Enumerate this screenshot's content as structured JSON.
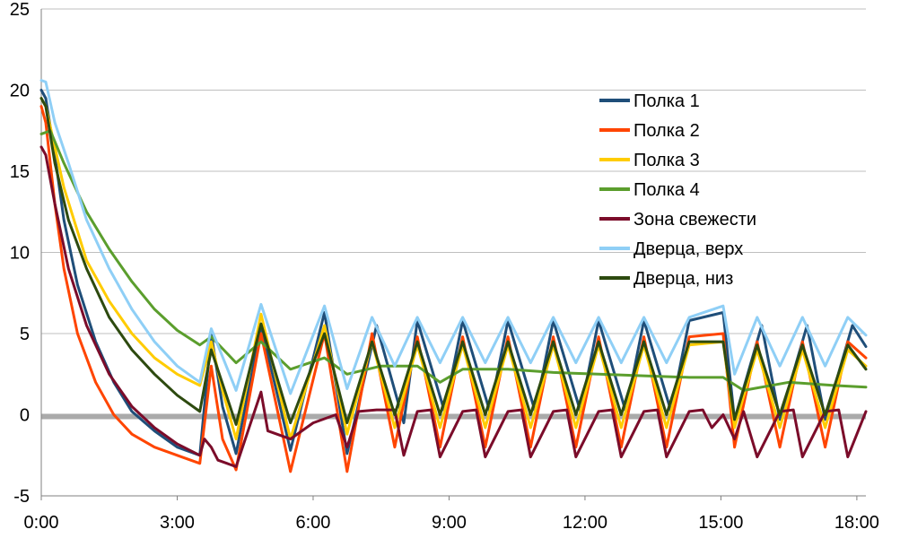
{
  "chart_data": {
    "type": "line",
    "title": "",
    "xlabel": "",
    "ylabel": "",
    "xlim": [
      0,
      18.2
    ],
    "ylim": [
      -5,
      25
    ],
    "x_ticks": [
      {
        "value": 0,
        "label": "0:00"
      },
      {
        "value": 3,
        "label": "3:00"
      },
      {
        "value": 6,
        "label": "6:00"
      },
      {
        "value": 9,
        "label": "9:00"
      },
      {
        "value": 12,
        "label": "12:00"
      },
      {
        "value": 15,
        "label": "15:00"
      },
      {
        "value": 18,
        "label": "18:00"
      }
    ],
    "y_ticks": [
      {
        "value": -5,
        "label": "-5"
      },
      {
        "value": 0,
        "label": "0"
      },
      {
        "value": 5,
        "label": "5"
      },
      {
        "value": 10,
        "label": "10"
      },
      {
        "value": 15,
        "label": "15"
      },
      {
        "value": 20,
        "label": "20"
      },
      {
        "value": 25,
        "label": "25"
      }
    ],
    "grid": "horizontal",
    "legend_position": "right",
    "zero_line_color": "#aaaaaa",
    "series": [
      {
        "name": "Полка 1",
        "color": "#1f4e79",
        "x": [
          0.0,
          0.1,
          0.3,
          0.5,
          0.8,
          1.2,
          1.6,
          2.0,
          2.5,
          3.0,
          3.5,
          3.75,
          4.0,
          4.3,
          4.85,
          5.5,
          6.25,
          6.75,
          7.4,
          8.0,
          8.3,
          8.9,
          9.3,
          9.9,
          10.3,
          10.9,
          11.3,
          11.9,
          12.3,
          12.9,
          13.3,
          13.9,
          14.3,
          15.05,
          15.3,
          15.9,
          16.3,
          16.9,
          17.3,
          17.9,
          18.2
        ],
        "y": [
          20.0,
          19.5,
          16.0,
          12.0,
          8.0,
          4.5,
          2.0,
          0.2,
          -1.0,
          -2.0,
          -2.5,
          5.0,
          0.5,
          -2.4,
          5.5,
          -2.2,
          6.3,
          -2.4,
          5.5,
          -0.5,
          5.8,
          0.2,
          5.8,
          0.2,
          5.8,
          0.2,
          5.8,
          0.2,
          5.8,
          0.2,
          5.8,
          0.2,
          5.8,
          6.3,
          -0.3,
          5.5,
          -0.3,
          5.5,
          -0.3,
          5.5,
          4.2
        ]
      },
      {
        "name": "Полка 2",
        "color": "#ff4500",
        "x": [
          0.0,
          0.1,
          0.3,
          0.5,
          0.8,
          1.2,
          1.6,
          2.0,
          2.5,
          3.0,
          3.5,
          3.75,
          4.0,
          4.3,
          4.85,
          5.5,
          6.25,
          6.75,
          7.3,
          7.8,
          8.3,
          8.8,
          9.3,
          9.8,
          10.3,
          10.8,
          11.3,
          11.8,
          12.3,
          12.8,
          13.3,
          13.8,
          14.3,
          15.05,
          15.3,
          15.8,
          16.3,
          16.8,
          17.3,
          17.8,
          18.2
        ],
        "y": [
          19.0,
          18.0,
          13.0,
          9.0,
          5.0,
          2.0,
          0.0,
          -1.2,
          -2.0,
          -2.5,
          -3.0,
          3.0,
          -1.5,
          -3.4,
          5.0,
          -3.5,
          5.0,
          -3.5,
          5.0,
          -2.0,
          4.8,
          -2.0,
          4.8,
          -2.0,
          4.8,
          -2.0,
          4.8,
          -2.0,
          4.8,
          -2.0,
          4.8,
          -2.0,
          4.8,
          5.0,
          -2.0,
          4.5,
          -2.0,
          4.5,
          -2.0,
          4.5,
          3.5
        ]
      },
      {
        "name": "Полка 3",
        "color": "#ffcc00",
        "x": [
          0.0,
          0.1,
          0.5,
          1.0,
          1.5,
          2.0,
          2.5,
          3.0,
          3.5,
          3.75,
          4.0,
          4.3,
          4.85,
          5.5,
          6.25,
          6.75,
          7.3,
          7.8,
          8.3,
          8.8,
          9.3,
          9.8,
          10.3,
          10.8,
          11.3,
          11.8,
          12.3,
          12.8,
          13.3,
          13.8,
          14.3,
          15.05,
          15.3,
          15.8,
          16.3,
          16.8,
          17.3,
          17.8,
          18.2
        ],
        "y": [
          19.5,
          19.0,
          14.0,
          9.5,
          7.0,
          5.0,
          3.5,
          2.5,
          1.8,
          4.5,
          1.5,
          -1.5,
          6.2,
          -1.5,
          5.5,
          -1.2,
          4.5,
          -0.8,
          4.3,
          -0.8,
          4.3,
          -0.8,
          4.3,
          -0.8,
          4.3,
          -0.8,
          4.3,
          -0.8,
          4.3,
          -0.8,
          4.3,
          4.5,
          -0.8,
          4.0,
          -0.8,
          4.0,
          -0.8,
          4.0,
          3.0
        ]
      },
      {
        "name": "Полка 4",
        "color": "#5b9e2d",
        "x": [
          0.0,
          0.2,
          0.5,
          1.0,
          1.5,
          2.0,
          2.5,
          3.0,
          3.5,
          3.75,
          4.3,
          4.85,
          5.5,
          6.25,
          6.75,
          7.5,
          8.3,
          8.8,
          9.3,
          10.3,
          11.3,
          12.3,
          13.3,
          14.3,
          15.05,
          15.5,
          16.5,
          17.5,
          18.2
        ],
        "y": [
          17.3,
          17.5,
          15.5,
          12.5,
          10.2,
          8.2,
          6.5,
          5.2,
          4.3,
          4.8,
          3.2,
          4.5,
          2.8,
          3.5,
          2.5,
          3.0,
          3.0,
          2.0,
          2.8,
          2.8,
          2.6,
          2.5,
          2.4,
          2.3,
          2.3,
          1.5,
          2.0,
          1.8,
          1.7
        ]
      },
      {
        "name": "Зона свежести",
        "color": "#7b0c2a",
        "x": [
          0.0,
          0.1,
          0.3,
          0.6,
          1.0,
          1.5,
          2.0,
          2.5,
          3.0,
          3.5,
          3.6,
          3.75,
          3.9,
          4.3,
          4.85,
          5.0,
          5.5,
          6.0,
          6.5,
          6.75,
          7.0,
          7.4,
          7.8,
          8.0,
          8.3,
          8.6,
          8.8,
          9.3,
          9.6,
          9.8,
          10.3,
          10.6,
          10.8,
          11.3,
          11.6,
          11.8,
          12.3,
          12.6,
          12.8,
          13.3,
          13.6,
          13.8,
          14.3,
          14.6,
          14.8,
          15.05,
          15.3,
          15.5,
          15.8,
          16.3,
          16.6,
          16.8,
          17.3,
          17.6,
          17.8,
          18.2
        ],
        "y": [
          16.5,
          16.0,
          13.0,
          9.0,
          5.5,
          2.5,
          0.5,
          -0.8,
          -1.8,
          -2.5,
          -1.5,
          -2.0,
          -2.8,
          -3.2,
          1.4,
          -1.0,
          -1.5,
          -0.5,
          0.0,
          -2.0,
          0.2,
          0.3,
          0.3,
          -2.5,
          0.2,
          0.3,
          -2.6,
          0.2,
          0.3,
          -2.6,
          0.2,
          0.3,
          -2.6,
          0.2,
          0.3,
          -2.6,
          0.2,
          0.3,
          -2.6,
          0.2,
          0.3,
          -2.6,
          0.2,
          0.3,
          -0.8,
          0.0,
          -1.5,
          0.2,
          -2.6,
          0.2,
          0.3,
          -2.6,
          0.2,
          0.3,
          -2.6,
          0.2
        ]
      },
      {
        "name": "Дверца, верх",
        "color": "#8fcff6",
        "x": [
          0.0,
          0.1,
          0.3,
          0.6,
          1.0,
          1.5,
          2.0,
          2.5,
          3.0,
          3.5,
          3.75,
          4.3,
          4.85,
          5.5,
          6.25,
          6.75,
          7.3,
          7.8,
          8.3,
          8.8,
          9.3,
          9.8,
          10.3,
          10.8,
          11.3,
          11.8,
          12.3,
          12.8,
          13.3,
          13.8,
          14.3,
          15.05,
          15.3,
          15.8,
          16.3,
          16.8,
          17.3,
          17.8,
          18.2
        ],
        "y": [
          20.6,
          20.5,
          18.0,
          15.5,
          12.0,
          9.0,
          6.5,
          4.5,
          3.0,
          2.0,
          5.3,
          1.5,
          6.8,
          1.3,
          6.7,
          1.6,
          6.0,
          3.0,
          6.0,
          3.2,
          6.0,
          3.2,
          6.0,
          3.2,
          6.0,
          3.2,
          6.0,
          3.2,
          6.0,
          3.2,
          6.0,
          6.7,
          2.5,
          6.0,
          3.0,
          6.0,
          3.0,
          6.0,
          4.9
        ]
      },
      {
        "name": "Дверца, низ",
        "color": "#2d4a0f",
        "x": [
          0.0,
          0.1,
          0.3,
          0.6,
          1.0,
          1.5,
          2.0,
          2.5,
          3.0,
          3.5,
          3.75,
          4.3,
          4.85,
          5.5,
          6.25,
          6.75,
          7.3,
          7.8,
          8.3,
          8.8,
          9.3,
          9.8,
          10.3,
          10.8,
          11.3,
          11.8,
          12.3,
          12.8,
          13.3,
          13.8,
          14.3,
          15.05,
          15.3,
          15.8,
          16.3,
          16.8,
          17.3,
          17.8,
          18.2
        ],
        "y": [
          19.5,
          19.0,
          15.5,
          12.0,
          9.0,
          6.0,
          4.0,
          2.5,
          1.2,
          0.2,
          4.0,
          -0.6,
          5.6,
          -0.5,
          5.0,
          -0.5,
          4.5,
          0.0,
          4.5,
          0.0,
          4.5,
          0.0,
          4.5,
          0.0,
          4.5,
          0.0,
          4.5,
          0.0,
          4.5,
          0.0,
          4.5,
          4.5,
          -0.3,
          4.3,
          0.0,
          4.3,
          0.0,
          4.3,
          2.8
        ]
      }
    ]
  }
}
